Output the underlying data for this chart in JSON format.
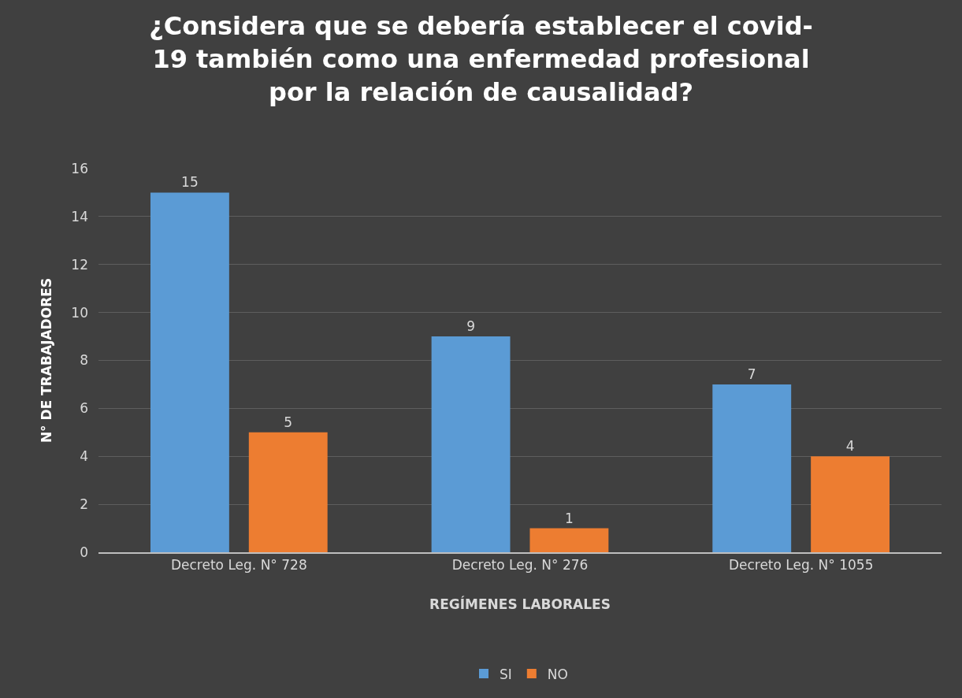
{
  "chart_data": {
    "type": "bar",
    "title": "¿Considera que se debería establecer el covid-\n19 también como una enfermedad profesional\npor la relación de causalidad?",
    "xlabel": "REGÍMENES LABORALES",
    "ylabel": "N° DE TRABAJADORES",
    "categories": [
      "Decreto Leg. N° 728",
      "Decreto Leg. N° 276",
      "Decreto Leg. N° 1055"
    ],
    "series": [
      {
        "name": "SI",
        "color": "#5b9bd5",
        "values": [
          15,
          9,
          7
        ]
      },
      {
        "name": "NO",
        "color": "#ed7d31",
        "values": [
          5,
          1,
          4
        ]
      }
    ],
    "ylim": [
      0,
      16
    ],
    "yticks": [
      0,
      2,
      4,
      6,
      8,
      10,
      12,
      14,
      16
    ],
    "grid": "y",
    "legend": "bottom",
    "data_labels": true
  }
}
